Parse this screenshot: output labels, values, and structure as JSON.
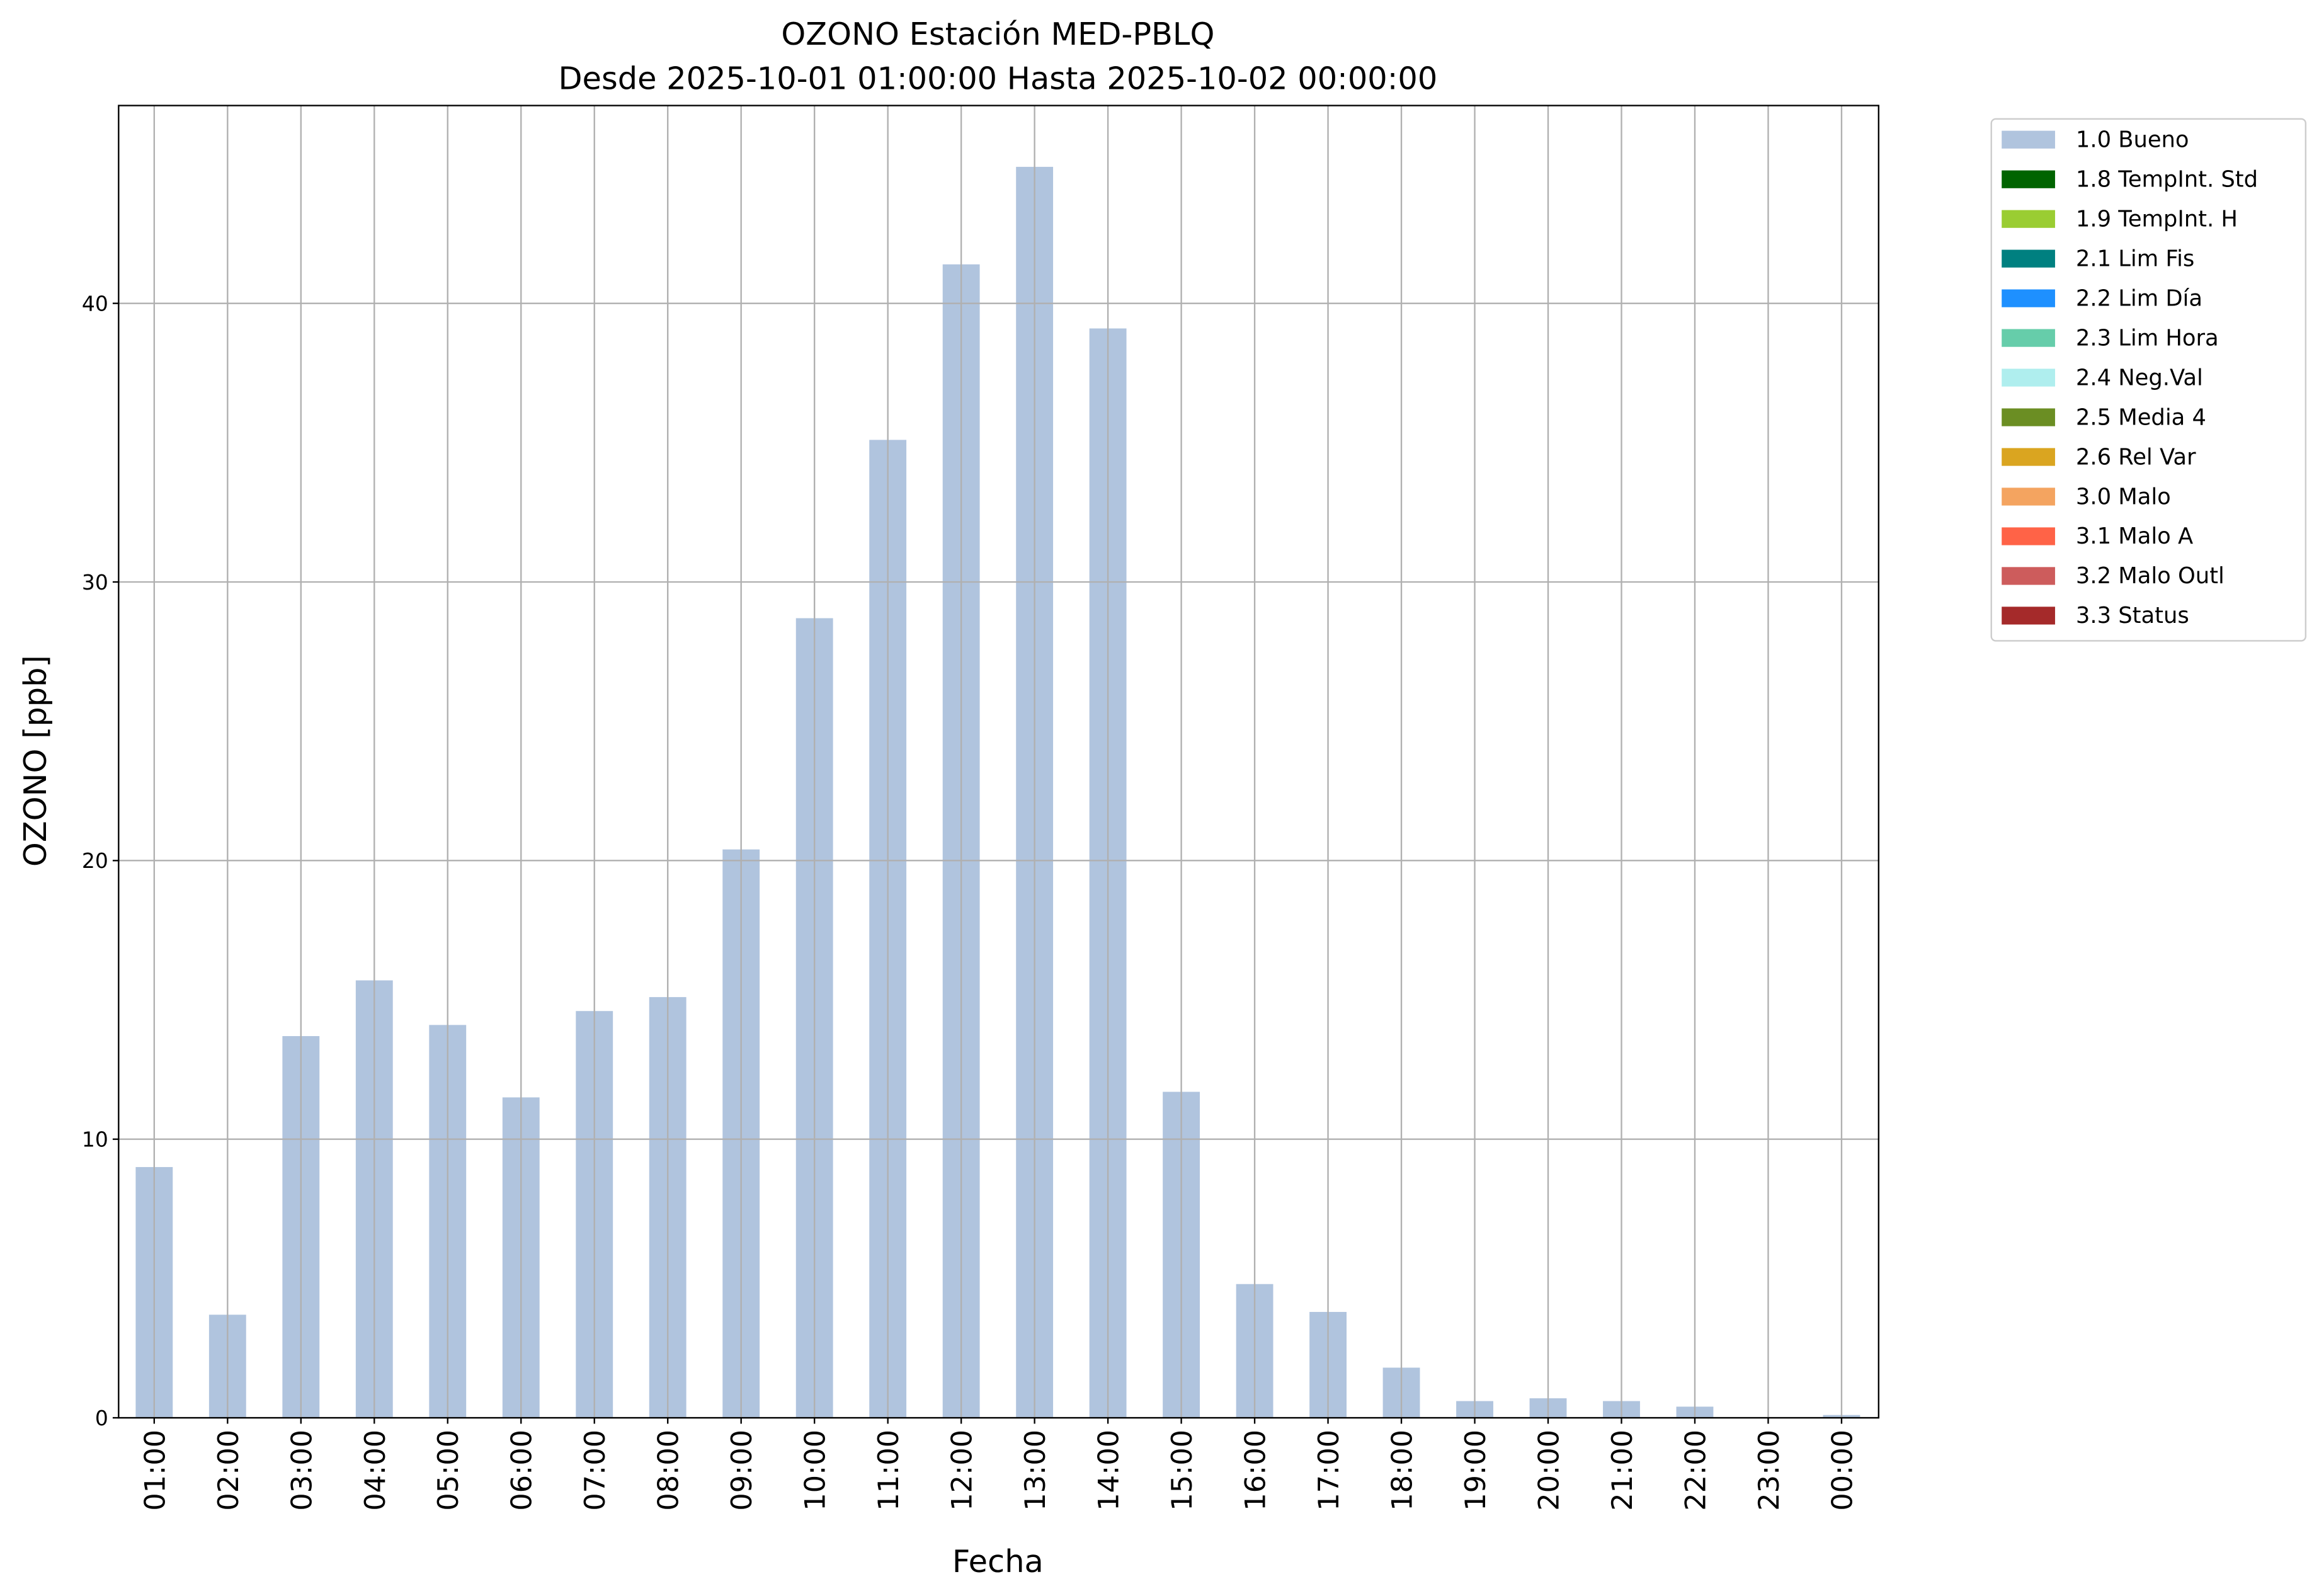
{
  "chart_data": {
    "type": "bar",
    "title": "OZONO Estación MED-PBLQ",
    "subtitle": "Desde 2025-10-01 01:00:00 Hasta 2025-10-02 00:00:00",
    "x_label": "Fecha",
    "y_label": "OZONO [ppb]",
    "categories": [
      "01:00",
      "02:00",
      "03:00",
      "04:00",
      "05:00",
      "06:00",
      "07:00",
      "08:00",
      "09:00",
      "10:00",
      "11:00",
      "12:00",
      "13:00",
      "14:00",
      "15:00",
      "16:00",
      "17:00",
      "18:00",
      "19:00",
      "20:00",
      "21:00",
      "22:00",
      "23:00",
      "00:00"
    ],
    "values": [
      9.0,
      3.7,
      13.7,
      15.7,
      14.1,
      11.5,
      14.6,
      15.1,
      20.4,
      28.7,
      35.1,
      41.4,
      44.9,
      39.1,
      11.7,
      4.8,
      3.8,
      1.8,
      0.6,
      0.7,
      0.6,
      0.4,
      0,
      0.1
    ],
    "color": "#b0c4de",
    "ylim": [
      0,
      47.1
    ],
    "yticks": [
      0,
      10,
      20,
      30,
      40
    ],
    "grid": true,
    "legend_position": "outside-upper-right",
    "legend": [
      {
        "name": "1.0 Bueno",
        "color": "#b0c4de"
      },
      {
        "name": "1.8 TempInt. Std",
        "color": "#006400"
      },
      {
        "name": "1.9 TempInt. H",
        "color": "#9acd32"
      },
      {
        "name": "2.1 Lim Fis",
        "color": "#008080"
      },
      {
        "name": "2.2 Lim Día",
        "color": "#1e90ff"
      },
      {
        "name": "2.3 Lim Hora",
        "color": "#66cdaa"
      },
      {
        "name": "2.4 Neg.Val",
        "color": "#afeeee"
      },
      {
        "name": "2.5 Media 4",
        "color": "#6b8e23"
      },
      {
        "name": "2.6 Rel Var",
        "color": "#daa520"
      },
      {
        "name": "3.0 Malo",
        "color": "#f4a460"
      },
      {
        "name": "3.1 Malo A",
        "color": "#ff6347"
      },
      {
        "name": "3.2 Malo Outl",
        "color": "#cd5c5c"
      },
      {
        "name": "3.3 Status",
        "color": "#a52a2a"
      }
    ]
  }
}
